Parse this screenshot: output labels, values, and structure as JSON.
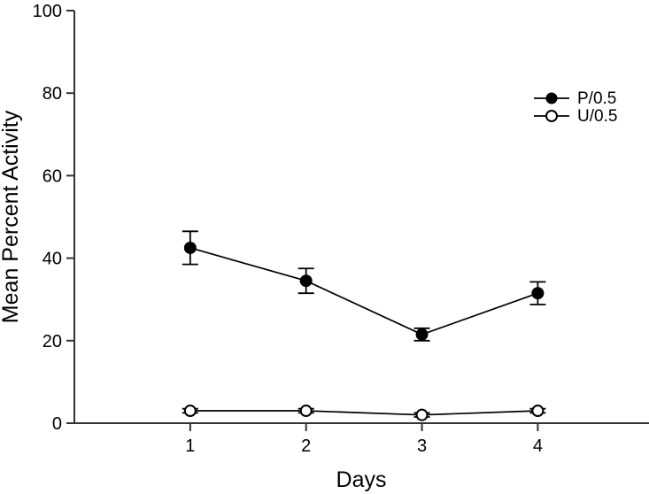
{
  "figure": {
    "background": "#ffffff",
    "ink_color": "#000000",
    "axis_color": "#333333"
  },
  "chart_data": {
    "type": "line",
    "title": "",
    "xlabel": "Days",
    "ylabel": "Mean Percent Activity",
    "x": [
      1,
      2,
      3,
      4
    ],
    "xticks": [
      1,
      2,
      3,
      4
    ],
    "yticks": [
      0,
      20,
      40,
      60,
      80,
      100
    ],
    "xlim": [
      0,
      4.96
    ],
    "ylim": [
      0,
      100
    ],
    "grid": false,
    "legend_position": "upper-right",
    "series": [
      {
        "name": "P/0.5",
        "marker": "filled-circle",
        "color": "#000000",
        "values": [
          42.5,
          34.5,
          21.5,
          31.5
        ],
        "errors": [
          4,
          3,
          1.5,
          2.75
        ]
      },
      {
        "name": "U/0.5",
        "marker": "open-circle",
        "color": "#000000",
        "values": [
          3,
          3,
          2,
          3
        ],
        "errors": [
          0.5,
          0.5,
          0.5,
          0.5
        ]
      }
    ]
  }
}
